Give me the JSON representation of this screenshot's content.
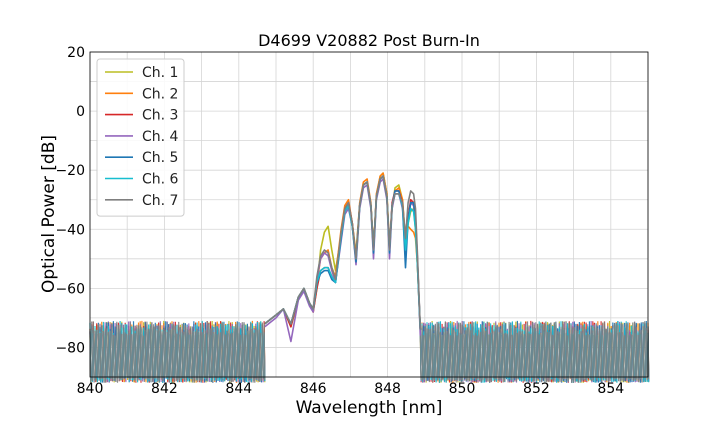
{
  "chart_data": {
    "type": "line",
    "title": "D4699 V20882 Post Burn-In",
    "xlabel": "Wavelength [nm]",
    "ylabel": "Optical Power [dB]",
    "xlim": [
      840,
      855
    ],
    "ylim": [
      -90,
      20
    ],
    "xticks": [
      840,
      842,
      844,
      846,
      848,
      850,
      852,
      854
    ],
    "yticks": [
      20,
      0,
      -20,
      -40,
      -60,
      -80
    ],
    "grid": true,
    "legend_position": "upper-left",
    "noise_floor_db": -80,
    "series": [
      {
        "name": "Ch. 1",
        "color": "#bcbd22",
        "points": [
          [
            844.7,
            -72
          ],
          [
            845.0,
            -69
          ],
          [
            845.2,
            -67
          ],
          [
            845.4,
            -73
          ],
          [
            845.6,
            -64
          ],
          [
            845.75,
            -60
          ],
          [
            845.9,
            -65
          ],
          [
            846.0,
            -68
          ],
          [
            846.1,
            -60
          ],
          [
            846.2,
            -47
          ],
          [
            846.3,
            -41
          ],
          [
            846.4,
            -39
          ],
          [
            846.5,
            -47
          ],
          [
            846.6,
            -54
          ],
          [
            846.75,
            -42
          ],
          [
            846.85,
            -34
          ],
          [
            846.95,
            -31
          ],
          [
            847.05,
            -38
          ],
          [
            847.15,
            -48
          ],
          [
            847.25,
            -32
          ],
          [
            847.35,
            -25
          ],
          [
            847.45,
            -24
          ],
          [
            847.55,
            -32
          ],
          [
            847.62,
            -46
          ],
          [
            847.7,
            -29
          ],
          [
            847.8,
            -22
          ],
          [
            847.88,
            -21
          ],
          [
            847.98,
            -28
          ],
          [
            848.05,
            -46
          ],
          [
            848.12,
            -33
          ],
          [
            848.2,
            -26
          ],
          [
            848.3,
            -25
          ],
          [
            848.4,
            -30
          ],
          [
            848.48,
            -44
          ],
          [
            848.55,
            -38
          ],
          [
            848.62,
            -34
          ],
          [
            848.7,
            -33
          ],
          [
            848.75,
            -40
          ],
          [
            848.8,
            -52
          ],
          [
            848.88,
            -74
          ]
        ]
      },
      {
        "name": "Ch. 2",
        "color": "#ff7f0e",
        "points": [
          [
            844.7,
            -72
          ],
          [
            845.0,
            -69
          ],
          [
            845.2,
            -67
          ],
          [
            845.4,
            -72
          ],
          [
            845.6,
            -63
          ],
          [
            845.75,
            -60
          ],
          [
            845.9,
            -65
          ],
          [
            846.0,
            -67
          ],
          [
            846.1,
            -58
          ],
          [
            846.2,
            -50
          ],
          [
            846.3,
            -48
          ],
          [
            846.4,
            -47
          ],
          [
            846.5,
            -53
          ],
          [
            846.6,
            -56
          ],
          [
            846.75,
            -40
          ],
          [
            846.85,
            -32
          ],
          [
            846.95,
            -30
          ],
          [
            847.05,
            -38
          ],
          [
            847.15,
            -49
          ],
          [
            847.25,
            -31
          ],
          [
            847.35,
            -24
          ],
          [
            847.45,
            -23
          ],
          [
            847.55,
            -31
          ],
          [
            847.62,
            -47
          ],
          [
            847.7,
            -28
          ],
          [
            847.8,
            -22
          ],
          [
            847.88,
            -21
          ],
          [
            847.98,
            -28
          ],
          [
            848.05,
            -46
          ],
          [
            848.12,
            -32
          ],
          [
            848.2,
            -27
          ],
          [
            848.3,
            -26
          ],
          [
            848.4,
            -30
          ],
          [
            848.48,
            -44
          ],
          [
            848.55,
            -39
          ],
          [
            848.62,
            -40
          ],
          [
            848.7,
            -41
          ],
          [
            848.75,
            -43
          ],
          [
            848.8,
            -52
          ],
          [
            848.88,
            -74
          ]
        ]
      },
      {
        "name": "Ch. 3",
        "color": "#d62728",
        "points": [
          [
            844.7,
            -72
          ],
          [
            845.0,
            -69
          ],
          [
            845.2,
            -67
          ],
          [
            845.4,
            -73
          ],
          [
            845.6,
            -63
          ],
          [
            845.75,
            -60
          ],
          [
            845.9,
            -65
          ],
          [
            846.0,
            -68
          ],
          [
            846.1,
            -60
          ],
          [
            846.2,
            -54
          ],
          [
            846.3,
            -53
          ],
          [
            846.4,
            -53
          ],
          [
            846.5,
            -56
          ],
          [
            846.6,
            -58
          ],
          [
            846.75,
            -42
          ],
          [
            846.85,
            -33
          ],
          [
            846.95,
            -31
          ],
          [
            847.05,
            -38
          ],
          [
            847.15,
            -50
          ],
          [
            847.25,
            -32
          ],
          [
            847.35,
            -25
          ],
          [
            847.45,
            -24
          ],
          [
            847.55,
            -32
          ],
          [
            847.62,
            -47
          ],
          [
            847.7,
            -29
          ],
          [
            847.8,
            -23
          ],
          [
            847.88,
            -22
          ],
          [
            847.98,
            -29
          ],
          [
            848.05,
            -47
          ],
          [
            848.12,
            -31
          ],
          [
            848.2,
            -27
          ],
          [
            848.3,
            -27
          ],
          [
            848.4,
            -31
          ],
          [
            848.48,
            -46
          ],
          [
            848.55,
            -36
          ],
          [
            848.62,
            -30
          ],
          [
            848.7,
            -31
          ],
          [
            848.75,
            -36
          ],
          [
            848.8,
            -50
          ],
          [
            848.88,
            -74
          ]
        ]
      },
      {
        "name": "Ch. 4",
        "color": "#9467bd",
        "points": [
          [
            844.7,
            -73
          ],
          [
            845.0,
            -70
          ],
          [
            845.2,
            -67
          ],
          [
            845.4,
            -78
          ],
          [
            845.6,
            -64
          ],
          [
            845.75,
            -61
          ],
          [
            845.9,
            -66
          ],
          [
            846.0,
            -68
          ],
          [
            846.1,
            -57
          ],
          [
            846.2,
            -50
          ],
          [
            846.3,
            -48
          ],
          [
            846.4,
            -49
          ],
          [
            846.5,
            -54
          ],
          [
            846.6,
            -58
          ],
          [
            846.75,
            -44
          ],
          [
            846.85,
            -35
          ],
          [
            846.95,
            -33
          ],
          [
            847.05,
            -39
          ],
          [
            847.15,
            -52
          ],
          [
            847.25,
            -33
          ],
          [
            847.35,
            -26
          ],
          [
            847.45,
            -25
          ],
          [
            847.55,
            -33
          ],
          [
            847.62,
            -50
          ],
          [
            847.7,
            -30
          ],
          [
            847.8,
            -24
          ],
          [
            847.88,
            -23
          ],
          [
            847.98,
            -30
          ],
          [
            848.05,
            -50
          ],
          [
            848.12,
            -33
          ],
          [
            848.2,
            -28
          ],
          [
            848.3,
            -28
          ],
          [
            848.4,
            -33
          ],
          [
            848.48,
            -49
          ],
          [
            848.55,
            -37
          ],
          [
            848.62,
            -31
          ],
          [
            848.7,
            -32
          ],
          [
            848.75,
            -37
          ],
          [
            848.8,
            -51
          ],
          [
            848.88,
            -76
          ]
        ]
      },
      {
        "name": "Ch. 5",
        "color": "#1f77b4",
        "points": [
          [
            844.7,
            -72
          ],
          [
            845.0,
            -69
          ],
          [
            845.2,
            -67
          ],
          [
            845.4,
            -72
          ],
          [
            845.6,
            -63
          ],
          [
            845.75,
            -60
          ],
          [
            845.9,
            -65
          ],
          [
            846.0,
            -67
          ],
          [
            846.1,
            -58
          ],
          [
            846.2,
            -55
          ],
          [
            846.3,
            -54
          ],
          [
            846.4,
            -54
          ],
          [
            846.5,
            -57
          ],
          [
            846.6,
            -58
          ],
          [
            846.75,
            -43
          ],
          [
            846.85,
            -34
          ],
          [
            846.95,
            -32
          ],
          [
            847.05,
            -39
          ],
          [
            847.15,
            -51
          ],
          [
            847.25,
            -32
          ],
          [
            847.35,
            -25
          ],
          [
            847.45,
            -24
          ],
          [
            847.55,
            -32
          ],
          [
            847.62,
            -48
          ],
          [
            847.7,
            -29
          ],
          [
            847.8,
            -23
          ],
          [
            847.88,
            -22
          ],
          [
            847.98,
            -29
          ],
          [
            848.05,
            -48
          ],
          [
            848.12,
            -32
          ],
          [
            848.2,
            -27
          ],
          [
            848.3,
            -27
          ],
          [
            848.4,
            -32
          ],
          [
            848.48,
            -53
          ],
          [
            848.55,
            -37
          ],
          [
            848.62,
            -31
          ],
          [
            848.7,
            -31
          ],
          [
            848.75,
            -36
          ],
          [
            848.8,
            -50
          ],
          [
            848.88,
            -74
          ]
        ]
      },
      {
        "name": "Ch. 6",
        "color": "#17becf",
        "points": [
          [
            844.7,
            -72
          ],
          [
            845.0,
            -69
          ],
          [
            845.2,
            -67
          ],
          [
            845.4,
            -72
          ],
          [
            845.6,
            -63
          ],
          [
            845.75,
            -60
          ],
          [
            845.9,
            -65
          ],
          [
            846.0,
            -67
          ],
          [
            846.1,
            -58
          ],
          [
            846.2,
            -54
          ],
          [
            846.3,
            -53
          ],
          [
            846.4,
            -53
          ],
          [
            846.5,
            -56
          ],
          [
            846.6,
            -58
          ],
          [
            846.75,
            -42
          ],
          [
            846.85,
            -34
          ],
          [
            846.95,
            -32
          ],
          [
            847.05,
            -39
          ],
          [
            847.15,
            -50
          ],
          [
            847.25,
            -32
          ],
          [
            847.35,
            -25
          ],
          [
            847.45,
            -24
          ],
          [
            847.55,
            -32
          ],
          [
            847.62,
            -47
          ],
          [
            847.7,
            -29
          ],
          [
            847.8,
            -23
          ],
          [
            847.88,
            -22
          ],
          [
            847.98,
            -29
          ],
          [
            848.05,
            -47
          ],
          [
            848.12,
            -32
          ],
          [
            848.2,
            -28
          ],
          [
            848.3,
            -28
          ],
          [
            848.4,
            -32
          ],
          [
            848.48,
            -47
          ],
          [
            848.55,
            -38
          ],
          [
            848.62,
            -33
          ],
          [
            848.7,
            -34
          ],
          [
            848.75,
            -40
          ],
          [
            848.8,
            -52
          ],
          [
            848.88,
            -74
          ]
        ]
      },
      {
        "name": "Ch. 7",
        "color": "#7f7f7f",
        "points": [
          [
            844.7,
            -72
          ],
          [
            845.0,
            -69
          ],
          [
            845.2,
            -67
          ],
          [
            845.4,
            -72
          ],
          [
            845.6,
            -63
          ],
          [
            845.75,
            -60
          ],
          [
            845.9,
            -65
          ],
          [
            846.0,
            -67
          ],
          [
            846.1,
            -56
          ],
          [
            846.2,
            -49
          ],
          [
            846.3,
            -47
          ],
          [
            846.4,
            -48
          ],
          [
            846.5,
            -53
          ],
          [
            846.6,
            -57
          ],
          [
            846.75,
            -41
          ],
          [
            846.85,
            -33
          ],
          [
            846.95,
            -31
          ],
          [
            847.05,
            -38
          ],
          [
            847.15,
            -50
          ],
          [
            847.25,
            -32
          ],
          [
            847.35,
            -25
          ],
          [
            847.45,
            -24
          ],
          [
            847.55,
            -32
          ],
          [
            847.62,
            -47
          ],
          [
            847.7,
            -29
          ],
          [
            847.8,
            -23
          ],
          [
            847.88,
            -22
          ],
          [
            847.98,
            -29
          ],
          [
            848.05,
            -47
          ],
          [
            848.12,
            -32
          ],
          [
            848.2,
            -28
          ],
          [
            848.3,
            -28
          ],
          [
            848.4,
            -31
          ],
          [
            848.48,
            -43
          ],
          [
            848.55,
            -31
          ],
          [
            848.62,
            -27
          ],
          [
            848.7,
            -28
          ],
          [
            848.75,
            -33
          ],
          [
            848.8,
            -48
          ],
          [
            848.88,
            -74
          ]
        ]
      }
    ]
  }
}
